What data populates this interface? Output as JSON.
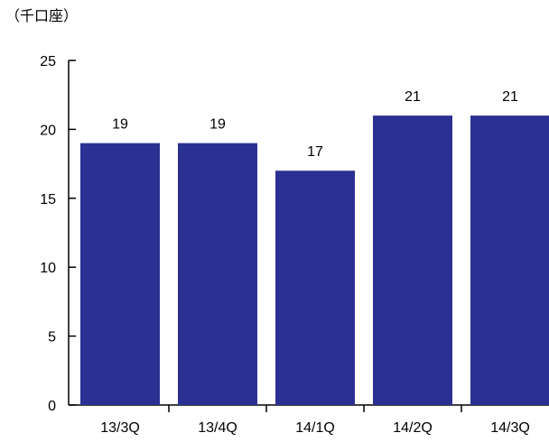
{
  "chart_data": {
    "type": "bar",
    "unit_label": "（千口座）",
    "categories": [
      "13/3Q",
      "13/4Q",
      "14/1Q",
      "14/2Q",
      "14/3Q"
    ],
    "values": [
      19,
      19,
      17,
      21,
      21
    ],
    "data_labels": [
      "19",
      "19",
      "17",
      "21",
      "21"
    ],
    "title": "",
    "xlabel": "",
    "ylabel": "",
    "ylim": [
      0,
      25
    ],
    "yticks": [
      0,
      5,
      10,
      15,
      20,
      25
    ],
    "grid": false,
    "legend": "none",
    "bar_color": "#2B3192",
    "axis_color": "#000000"
  }
}
